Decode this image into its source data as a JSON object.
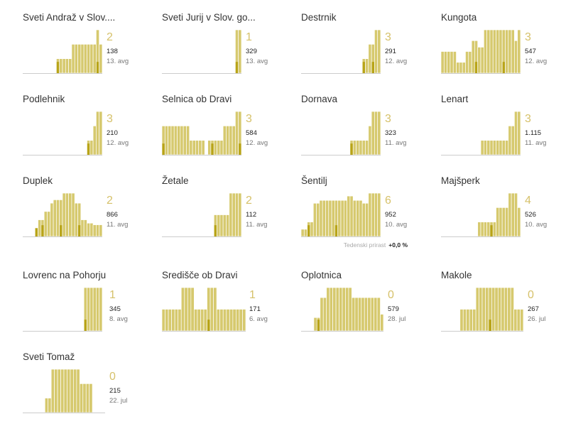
{
  "colors": {
    "bar": "#d6c96e",
    "bar_dark": "#b8a418",
    "bar_stroke": "#ffffff",
    "baseline": "#cccccc",
    "count": "#d6c16a"
  },
  "footnote": {
    "label": "Tedenski prirast",
    "value": "+0,0 %"
  },
  "chart_data": [
    {
      "type": "bar",
      "title": "Sveti Andraž v Slov....",
      "count": "2",
      "total": "138",
      "date": "13. avg",
      "values": [
        0,
        0,
        0,
        0,
        0,
        0,
        0,
        0,
        0,
        0,
        0,
        1,
        1,
        1,
        1,
        1,
        2,
        2,
        2,
        2,
        2,
        2,
        2,
        2,
        3,
        2
      ],
      "highlight": [
        0,
        0,
        0,
        0,
        0,
        0,
        0,
        0,
        0,
        0,
        0,
        1,
        0,
        0,
        0,
        0,
        0,
        0,
        0,
        0,
        0,
        0,
        0,
        0,
        1,
        0
      ]
    },
    {
      "type": "bar",
      "title": "Sveti Jurij v Slov. go...",
      "count": "1",
      "total": "329",
      "date": "13. avg",
      "values": [
        0,
        0,
        0,
        0,
        0,
        0,
        0,
        0,
        0,
        0,
        0,
        0,
        0,
        0,
        0,
        0,
        0,
        0,
        0,
        0,
        0,
        0,
        0,
        0,
        1,
        1
      ],
      "highlight": [
        0,
        0,
        0,
        0,
        0,
        0,
        0,
        0,
        0,
        0,
        0,
        0,
        0,
        0,
        0,
        0,
        0,
        0,
        0,
        0,
        0,
        0,
        0,
        0,
        1,
        0
      ]
    },
    {
      "type": "bar",
      "title": "Destrnik",
      "count": "3",
      "total": "291",
      "date": "12. avg",
      "values": [
        0,
        0,
        0,
        0,
        0,
        0,
        0,
        0,
        0,
        0,
        0,
        0,
        0,
        0,
        0,
        0,
        0,
        0,
        0,
        0,
        1,
        1,
        2,
        2,
        3,
        3
      ],
      "highlight": [
        0,
        0,
        0,
        0,
        0,
        0,
        0,
        0,
        0,
        0,
        0,
        0,
        0,
        0,
        0,
        0,
        0,
        0,
        0,
        0,
        1,
        0,
        0,
        1,
        0,
        0
      ]
    },
    {
      "type": "bar",
      "title": "Kungota",
      "count": "3",
      "total": "547",
      "date": "12. avg",
      "values": [
        1,
        1,
        1,
        1,
        1,
        0.5,
        0.5,
        0.5,
        1,
        1,
        1.5,
        1.5,
        1.2,
        1.2,
        2,
        2,
        2,
        2,
        2,
        2,
        2,
        2,
        2,
        2,
        1.5,
        2
      ],
      "highlight": [
        0,
        0,
        0,
        0,
        0,
        0,
        0,
        0,
        0,
        0,
        0,
        1,
        0,
        0,
        0,
        0,
        0,
        0,
        0,
        0,
        1,
        0,
        0,
        0,
        0,
        0
      ]
    },
    {
      "type": "bar",
      "title": "Podlehnik",
      "count": "3",
      "total": "210",
      "date": "12. avg",
      "values": [
        0,
        0,
        0,
        0,
        0,
        0,
        0,
        0,
        0,
        0,
        0,
        0,
        0,
        0,
        0,
        0,
        0,
        0,
        0,
        0,
        0,
        1,
        1,
        2,
        3,
        3
      ],
      "highlight": [
        0,
        0,
        0,
        0,
        0,
        0,
        0,
        0,
        0,
        0,
        0,
        0,
        0,
        0,
        0,
        0,
        0,
        0,
        0,
        0,
        0,
        1,
        0,
        0,
        0,
        0
      ]
    },
    {
      "type": "bar",
      "title": "Selnica ob Dravi",
      "count": "3",
      "total": "584",
      "date": "12. avg",
      "values": [
        2,
        2,
        2,
        2,
        2,
        2,
        2,
        2,
        2,
        1,
        1,
        1,
        1,
        1,
        0,
        1,
        1,
        1,
        1,
        1,
        2,
        2,
        2,
        2,
        3,
        3
      ],
      "highlight": [
        1,
        0,
        0,
        0,
        0,
        0,
        0,
        0,
        0,
        0,
        0,
        0,
        0,
        0,
        0,
        0,
        1,
        0,
        0,
        0,
        0,
        0,
        0,
        0,
        0,
        1
      ]
    },
    {
      "type": "bar",
      "title": "Dornava",
      "count": "3",
      "total": "323",
      "date": "11. avg",
      "values": [
        0,
        0,
        0,
        0,
        0,
        0,
        0,
        0,
        0,
        0,
        0,
        0,
        0,
        0,
        0,
        0,
        1,
        1,
        1,
        1,
        1,
        1,
        2,
        3,
        3,
        3
      ],
      "highlight": [
        0,
        0,
        0,
        0,
        0,
        0,
        0,
        0,
        0,
        0,
        0,
        0,
        0,
        0,
        0,
        0,
        1,
        0,
        0,
        0,
        0,
        0,
        0,
        0,
        0,
        0
      ]
    },
    {
      "type": "bar",
      "title": "Lenart",
      "count": "3",
      "total": "1.115",
      "date": "11. avg",
      "values": [
        0,
        0,
        0,
        0,
        0,
        0,
        0,
        0,
        0,
        0,
        0,
        0,
        0,
        1,
        1,
        1,
        1,
        1,
        1,
        1,
        1,
        1,
        2,
        2,
        3,
        3
      ],
      "highlight": [
        0,
        0,
        0,
        0,
        0,
        0,
        0,
        0,
        0,
        0,
        0,
        0,
        0,
        0,
        0,
        0,
        0,
        0,
        0,
        0,
        0,
        0,
        0,
        0,
        0,
        0
      ]
    },
    {
      "type": "bar",
      "title": "Duplek",
      "count": "2",
      "total": "866",
      "date": "11. avg",
      "values": [
        0,
        0,
        0,
        0,
        0.5,
        1,
        1,
        1.5,
        1.5,
        2,
        2.2,
        2.2,
        2.2,
        2.6,
        2.6,
        2.6,
        2.6,
        2,
        2,
        1,
        1,
        0.8,
        0.8,
        0.7,
        0.7,
        0.7
      ],
      "highlight": [
        0,
        0,
        0,
        0,
        1,
        0,
        1,
        0,
        0,
        0,
        0,
        0,
        1,
        0,
        0,
        0,
        0,
        0,
        1,
        0,
        0,
        0,
        0,
        0,
        0,
        0
      ]
    },
    {
      "type": "bar",
      "title": "Žetale",
      "count": "2",
      "total": "112",
      "date": "11. avg",
      "values": [
        0,
        0,
        0,
        0,
        0,
        0,
        0,
        0,
        0,
        0,
        0,
        0,
        0,
        0,
        0,
        0,
        0,
        1,
        1,
        1,
        1,
        1,
        2,
        2,
        2,
        2
      ],
      "highlight": [
        0,
        0,
        0,
        0,
        0,
        0,
        0,
        0,
        0,
        0,
        0,
        0,
        0,
        0,
        0,
        0,
        0,
        1,
        0,
        0,
        0,
        0,
        0,
        0,
        0,
        0
      ]
    },
    {
      "type": "bar",
      "title": "Šentilj",
      "count": "6",
      "total": "952",
      "date": "10. avg",
      "values": [
        0.5,
        0.5,
        1,
        1,
        2.3,
        2.3,
        2.5,
        2.5,
        2.5,
        2.5,
        2.5,
        2.5,
        2.5,
        2.5,
        2.5,
        2.8,
        2.8,
        2.5,
        2.5,
        2.5,
        2.3,
        2.3,
        3,
        3,
        3,
        3
      ],
      "highlight": [
        0,
        0,
        1,
        0,
        0,
        0,
        0,
        0,
        0,
        0,
        0,
        1,
        0,
        0,
        0,
        0,
        0,
        0,
        0,
        0,
        0,
        0,
        0,
        0,
        0,
        0
      ]
    },
    {
      "type": "bar",
      "title": "Majšperk",
      "count": "4",
      "total": "526",
      "date": "10. avg",
      "values": [
        0,
        0,
        0,
        0,
        0,
        0,
        0,
        0,
        0,
        0,
        0,
        0,
        1,
        1,
        1,
        1,
        1,
        1,
        2,
        2,
        2,
        2,
        3,
        3,
        3,
        2
      ],
      "highlight": [
        0,
        0,
        0,
        0,
        0,
        0,
        0,
        0,
        0,
        0,
        0,
        0,
        0,
        0,
        0,
        0,
        1,
        0,
        0,
        0,
        0,
        0,
        0,
        0,
        0,
        0
      ]
    },
    {
      "type": "bar",
      "title": "Lovrenc na Pohorju",
      "count": "1",
      "total": "345",
      "date": "8. avg",
      "values": [
        0,
        0,
        0,
        0,
        0,
        0,
        0,
        0,
        0,
        0,
        0,
        0,
        0,
        0,
        0,
        0,
        0,
        0,
        0,
        0,
        1,
        1,
        1,
        1,
        1,
        1
      ],
      "highlight": [
        0,
        0,
        0,
        0,
        0,
        0,
        0,
        0,
        0,
        0,
        0,
        0,
        0,
        0,
        0,
        0,
        0,
        0,
        0,
        0,
        1,
        0,
        0,
        0,
        0,
        0
      ]
    },
    {
      "type": "bar",
      "title": "Središče ob Dravi",
      "count": "1",
      "total": "171",
      "date": "6. avg",
      "values": [
        1,
        1,
        1,
        1,
        1,
        1,
        2,
        2,
        2,
        2,
        1,
        1,
        1,
        1,
        2,
        2,
        2,
        1,
        1,
        1,
        1,
        1,
        1,
        1,
        1,
        1
      ],
      "highlight": [
        0,
        0,
        0,
        0,
        0,
        0,
        0,
        0,
        0,
        0,
        0,
        0,
        0,
        0,
        1,
        0,
        0,
        0,
        0,
        0,
        0,
        0,
        0,
        0,
        0,
        0
      ]
    },
    {
      "type": "bar",
      "title": "Oplotnica",
      "count": "0",
      "total": "579",
      "date": "28. jul",
      "values": [
        0,
        0,
        0,
        0,
        0.4,
        0.4,
        1,
        1,
        1.3,
        1.3,
        1.3,
        1.3,
        1.3,
        1.3,
        1.3,
        1.3,
        1,
        1,
        1,
        1,
        1,
        1,
        1,
        1,
        1,
        0.5
      ],
      "highlight": [
        0,
        0,
        0,
        0,
        0,
        1,
        0,
        0,
        0,
        0,
        0,
        0,
        0,
        0,
        0,
        0,
        0,
        0,
        0,
        0,
        0,
        0,
        0,
        0,
        0,
        0
      ]
    },
    {
      "type": "bar",
      "title": "Makole",
      "count": "0",
      "total": "267",
      "date": "26. jul",
      "values": [
        0,
        0,
        0,
        0,
        0,
        0,
        1,
        1,
        1,
        1,
        1,
        2,
        2,
        2,
        2,
        2,
        2,
        2,
        2,
        2,
        2,
        2,
        2,
        1,
        1,
        1
      ],
      "highlight": [
        0,
        0,
        0,
        0,
        0,
        0,
        0,
        0,
        0,
        0,
        0,
        0,
        0,
        0,
        0,
        1,
        0,
        0,
        0,
        0,
        0,
        0,
        0,
        0,
        0,
        0
      ]
    },
    {
      "type": "bar",
      "title": "Sveti Tomaž",
      "count": "0",
      "total": "215",
      "date": "22. jul",
      "values": [
        0,
        0,
        0,
        0,
        0,
        0,
        0,
        0.5,
        0.5,
        1.5,
        1.5,
        1.5,
        1.5,
        1.5,
        1.5,
        1.5,
        1.5,
        1.5,
        1,
        1,
        1,
        1,
        0,
        0,
        0,
        0
      ],
      "highlight": [
        0,
        0,
        0,
        0,
        0,
        0,
        0,
        0,
        0,
        0,
        0,
        0,
        0,
        0,
        0,
        0,
        0,
        0,
        0,
        0,
        0,
        0,
        0,
        0,
        0,
        0
      ]
    }
  ]
}
